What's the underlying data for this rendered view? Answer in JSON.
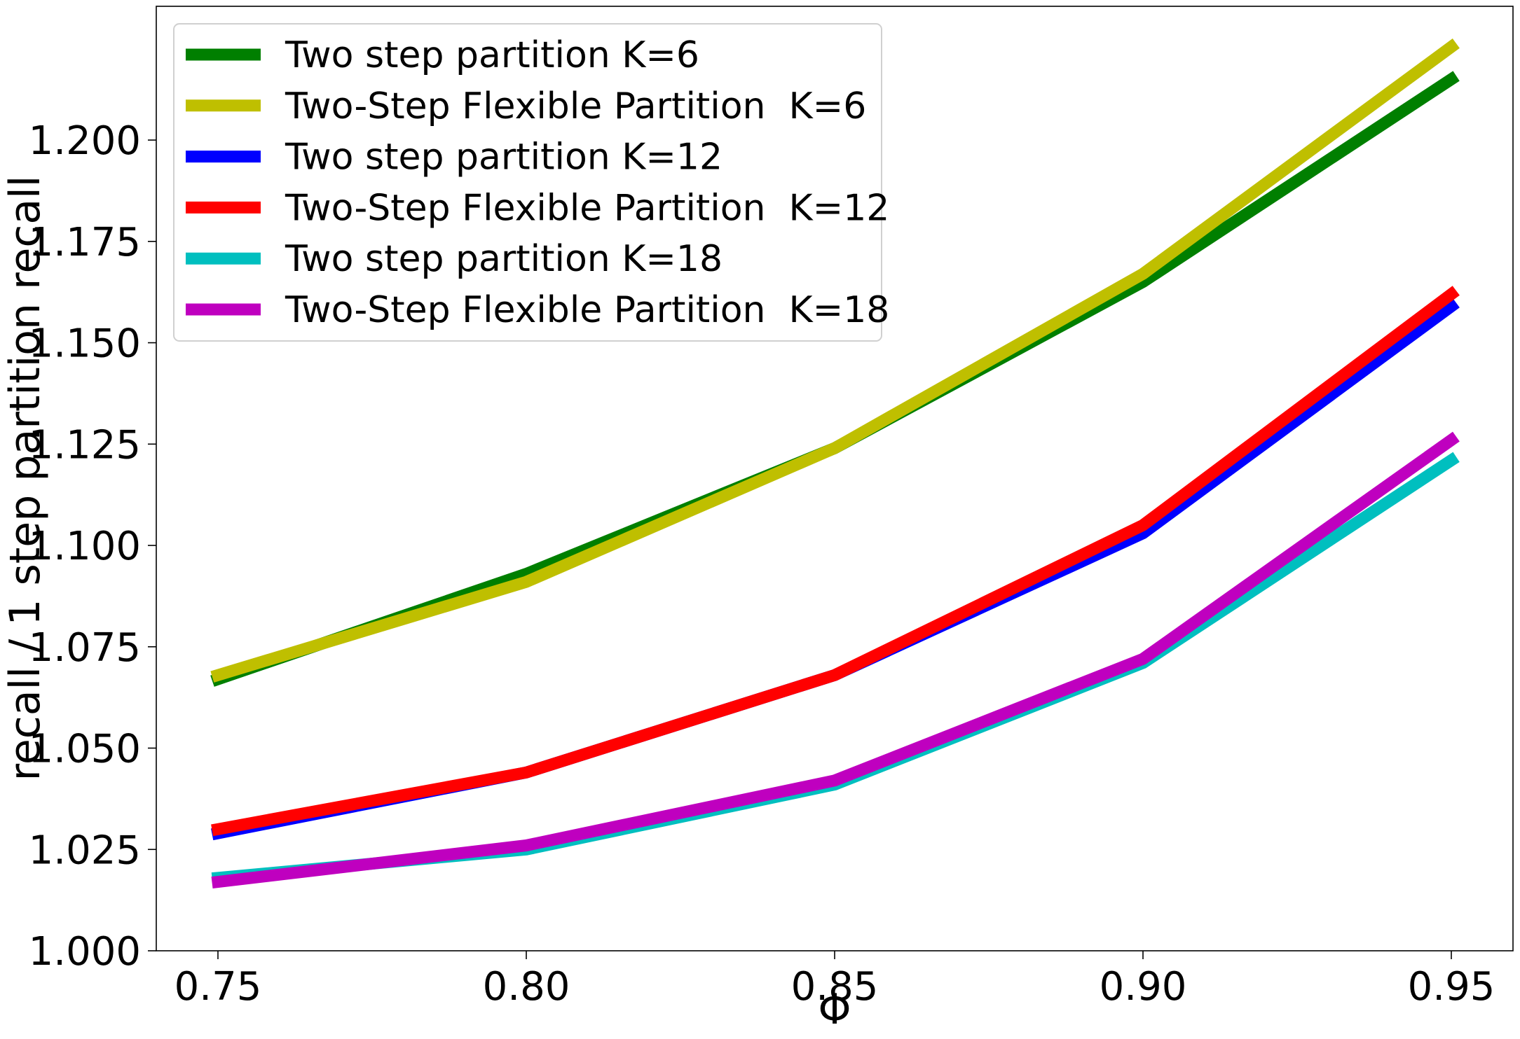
{
  "chart_data": {
    "type": "line",
    "xlabel": "Φ",
    "ylabel": "recall / 1 step partition recall",
    "xlim": [
      0.74,
      0.96
    ],
    "ylim": [
      1.0,
      1.233
    ],
    "xticks": [
      0.75,
      0.8,
      0.85,
      0.9,
      0.95
    ],
    "xtick_labels": [
      "0.75",
      "0.80",
      "0.85",
      "0.90",
      "0.95"
    ],
    "yticks": [
      1.0,
      1.025,
      1.05,
      1.075,
      1.1,
      1.125,
      1.15,
      1.175,
      1.2
    ],
    "ytick_labels": [
      "1.000",
      "1.025",
      "1.050",
      "1.075",
      "1.100",
      "1.125",
      "1.150",
      "1.175",
      "1.200"
    ],
    "grid": false,
    "legend_position": "top-left",
    "x": [
      0.75,
      0.8,
      0.85,
      0.9,
      0.95
    ],
    "series": [
      {
        "name": "Two step partition K=6",
        "color": "#007f00",
        "values": [
          1.067,
          1.093,
          1.124,
          1.165,
          1.215
        ]
      },
      {
        "name": "Two-Step Flexible Partition  K=6",
        "color": "#bfbf00",
        "values": [
          1.068,
          1.091,
          1.124,
          1.167,
          1.223
        ]
      },
      {
        "name": "Two step partition K=12",
        "color": "#0000ff",
        "values": [
          1.029,
          1.044,
          1.068,
          1.103,
          1.159
        ]
      },
      {
        "name": "Two-Step Flexible Partition  K=12",
        "color": "#ff0000",
        "values": [
          1.03,
          1.044,
          1.068,
          1.105,
          1.162
        ]
      },
      {
        "name": "Two step partition K=18",
        "color": "#00bfbf",
        "values": [
          1.018,
          1.025,
          1.041,
          1.071,
          1.121
        ]
      },
      {
        "name": "Two-Step Flexible Partition  K=18",
        "color": "#bf00bf",
        "values": [
          1.017,
          1.026,
          1.042,
          1.072,
          1.126
        ]
      }
    ]
  }
}
